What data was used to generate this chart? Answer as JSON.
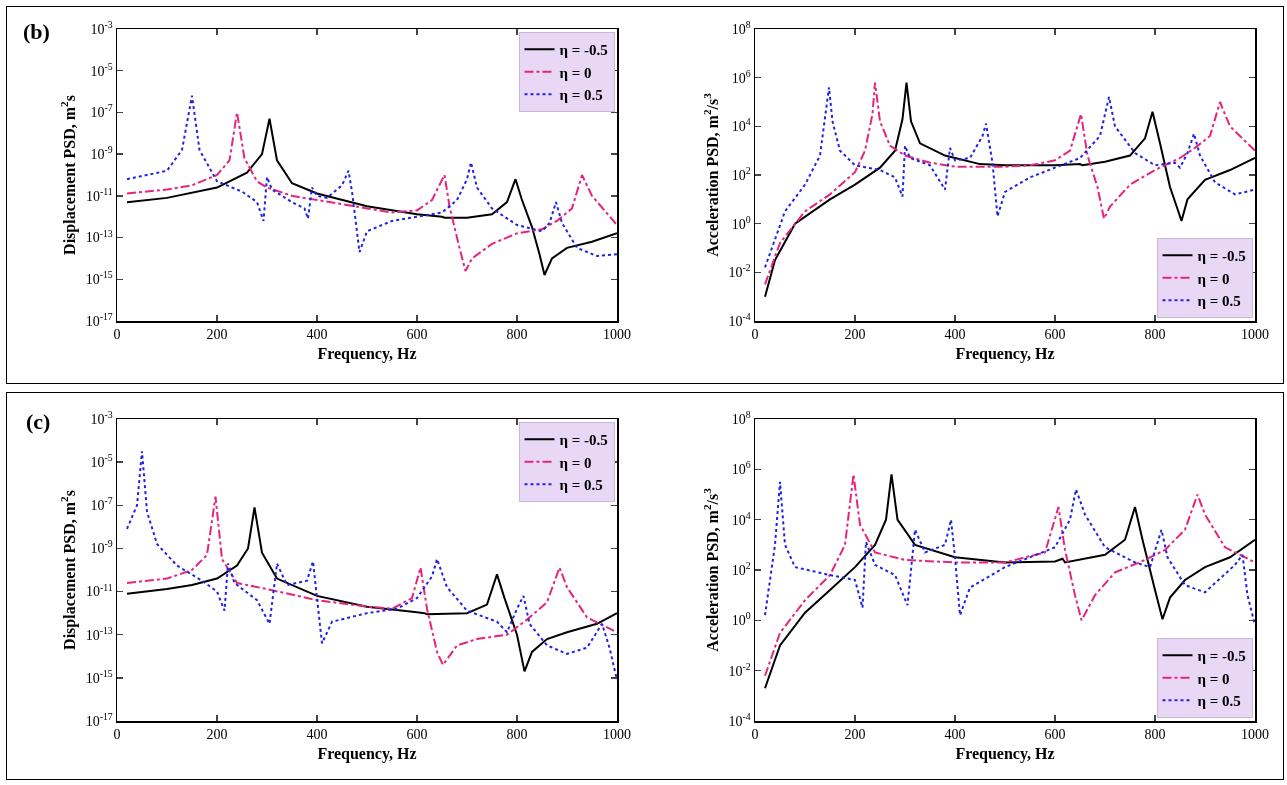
{
  "chart_data": [
    {
      "type": "line",
      "xlabel": "Frequency, Hz",
      "ylabel": "Displacement PSD, m$^{2}$s",
      "annotations": [
        "(b)"
      ],
      "log": "y",
      "legend": "top right",
      "xlim": [
        0,
        1000
      ],
      "xticks": [
        0,
        200,
        400,
        600,
        800,
        1000
      ],
      "ylim": [
        1e-17,
        0.001
      ],
      "yticks": [
        {
          "value": 1e-17,
          "label": "10$^{-17}$"
        },
        {
          "value": 1e-15,
          "label": "10$^{-15}$"
        },
        {
          "value": 1e-13,
          "label": "10$^{-13}$"
        },
        {
          "value": 1e-11,
          "label": "10$^{-11}$"
        },
        {
          "value": 1e-09,
          "label": "10$^{-9}$"
        },
        {
          "value": 1e-07,
          "label": "10$^{-7}$"
        },
        {
          "value": 1e-05,
          "label": "10$^{-5}$"
        },
        {
          "value": 0.001,
          "label": "10$^{-3}$"
        }
      ],
      "series": [
        {
          "name": "η = -0.5",
          "color": "#000000",
          "line_style": "solid",
          "x": [
            20,
            100,
            200,
            260,
            290,
            305,
            320,
            350,
            400,
            500,
            600,
            650,
            655,
            700,
            750,
            780,
            797,
            810,
            830,
            845,
            855,
            870,
            900,
            950,
            1000
          ],
          "values": [
            5e-12,
            8e-12,
            2.5e-11,
            1.3e-10,
            1e-09,
            5e-08,
            5e-10,
            4e-11,
            1.3e-11,
            3.2e-12,
            1.3e-12,
            1e-12,
            9e-13,
            9e-13,
            1.3e-12,
            5e-12,
            6.3e-11,
            6.3e-12,
            3.2e-13,
            1.6e-14,
            1.6e-15,
            1e-14,
            3.2e-14,
            6.3e-14,
            1.6e-13
          ]
        },
        {
          "name": "η = 0",
          "color": "#e6247a",
          "line_style": "dashdot",
          "x": [
            20,
            100,
            150,
            200,
            225,
            240,
            255,
            280,
            300,
            350,
            400,
            450,
            500,
            550,
            600,
            630,
            655,
            665,
            685,
            697,
            710,
            750,
            800,
            850,
            880,
            910,
            930,
            950,
            1000
          ],
          "values": [
            1.3e-11,
            2e-11,
            3.2e-11,
            1e-10,
            5e-10,
            1e-07,
            6.3e-10,
            5e-11,
            2.5e-11,
            1e-11,
            6.3e-12,
            4e-12,
            2.5e-12,
            1.6e-12,
            2e-12,
            6.3e-12,
            1e-10,
            3.2e-12,
            3.2e-14,
            2.5e-15,
            1e-14,
            5e-14,
            1.6e-13,
            2.5e-13,
            6.3e-13,
            2.5e-12,
            1e-10,
            1e-11,
            4e-13
          ]
        },
        {
          "name": "η = 0.5",
          "color": "#2222e0",
          "line_style": "dotted",
          "x": [
            20,
            100,
            130,
            150,
            165,
            200,
            250,
            280,
            293,
            300,
            310,
            350,
            375,
            382,
            390,
            400,
            420,
            450,
            463,
            470,
            485,
            500,
            550,
            600,
            650,
            680,
            700,
            708,
            720,
            750,
            800,
            850,
            865,
            878,
            890,
            920,
            960,
            1000
          ],
          "values": [
            6.3e-11,
            1.6e-10,
            1.6e-09,
            6.3e-07,
            1.6e-09,
            5e-11,
            1.6e-11,
            5e-12,
            6.3e-13,
            8e-11,
            2e-11,
            5e-12,
            2.5e-12,
            8e-13,
            2.5e-11,
            1e-11,
            8e-12,
            3.2e-11,
            1.6e-10,
            1.6e-11,
            2e-14,
            2e-13,
            6.3e-13,
            1e-12,
            1.6e-12,
            6.3e-12,
            6.3e-11,
            4e-10,
            2.5e-11,
            2.5e-12,
            4e-13,
            2e-13,
            5e-13,
            5e-12,
            5e-13,
            3.2e-14,
            1.3e-14,
            1.6e-14
          ]
        }
      ]
    },
    {
      "type": "line",
      "xlabel": "Frequency, Hz",
      "ylabel": "Acceleration PSD, m$^{2}$/s$^{3}$",
      "log": "y",
      "legend": "bottom right",
      "xlim": [
        0,
        1000
      ],
      "xticks": [
        0,
        200,
        400,
        600,
        800,
        1000
      ],
      "ylim": [
        0.0001,
        100000000.0
      ],
      "yticks": [
        {
          "value": 0.0001,
          "label": "10$^{-4}$"
        },
        {
          "value": 0.01,
          "label": "10$^{-2}$"
        },
        {
          "value": 1,
          "label": "10$^{0}$"
        },
        {
          "value": 100,
          "label": "10$^{2}$"
        },
        {
          "value": 10000.0,
          "label": "10$^{4}$"
        },
        {
          "value": 1000000.0,
          "label": "10$^{6}$"
        },
        {
          "value": 100000000.0,
          "label": "10$^{8}$"
        }
      ],
      "series": [
        {
          "name": "η = -0.5",
          "color": "#000000",
          "line_style": "solid",
          "x": [
            20,
            40,
            80,
            150,
            200,
            250,
            280,
            295,
            303,
            312,
            330,
            380,
            450,
            500,
            600,
            650,
            655,
            700,
            750,
            780,
            795,
            810,
            830,
            845,
            853,
            865,
            900,
            950,
            1000
          ],
          "values": [
            0.001,
            0.032,
            1,
            10,
            40,
            200,
            1000,
            20000,
            630000,
            16000,
            2000,
            630,
            280,
            250,
            250,
            280,
            250,
            350,
            630,
            3200,
            40000,
            2000,
            32,
            4,
            1.3,
            10,
            63,
            160,
            500
          ]
        },
        {
          "name": "η = 0",
          "color": "#e6247a",
          "line_style": "dashdot",
          "x": [
            20,
            50,
            100,
            150,
            200,
            220,
            235,
            240,
            250,
            270,
            300,
            350,
            400,
            500,
            550,
            600,
            630,
            652,
            665,
            685,
            698,
            710,
            750,
            800,
            850,
            880,
            910,
            930,
            950,
            1000
          ],
          "values": [
            0.0032,
            0.16,
            3.2,
            16,
            130,
            1000,
            32000,
            630000,
            16000,
            1600,
            630,
            320,
            220,
            220,
            250,
            400,
            1000,
            32000,
            630,
            32,
            1.6,
            5,
            40,
            160,
            500,
            1300,
            4000,
            100000,
            10000,
            1000
          ]
        },
        {
          "name": "η = 0.5",
          "color": "#2222e0",
          "line_style": "dotted",
          "x": [
            20,
            60,
            100,
            130,
            148,
            155,
            170,
            200,
            250,
            280,
            295,
            300,
            310,
            350,
            380,
            390,
            400,
            430,
            455,
            462,
            475,
            485,
            500,
            550,
            600,
            650,
            690,
            708,
            720,
            760,
            800,
            840,
            850,
            865,
            878,
            890,
            920,
            960,
            1000
          ],
          "values": [
            0.016,
            3.2,
            40,
            630,
            400000,
            16000,
            1000,
            250,
            160,
            80,
            13,
            1600,
            500,
            250,
            25,
            1300,
            400,
            500,
            4000,
            13000,
            320,
            2,
            20,
            80,
            200,
            500,
            4000,
            160000,
            10000,
            800,
            250,
            320,
            200,
            800,
            5000,
            630,
            50,
            16,
            25
          ]
        }
      ]
    },
    {
      "type": "line",
      "xlabel": "Frequency, Hz",
      "ylabel": "Displacement PSD, m$^{2}$s",
      "annotations": [
        "(c)"
      ],
      "log": "y",
      "legend": "top right",
      "xlim": [
        0,
        1000
      ],
      "xticks": [
        0,
        200,
        400,
        600,
        800,
        1000
      ],
      "ylim": [
        1e-17,
        0.001
      ],
      "yticks": [
        {
          "value": 1e-17,
          "label": "10$^{-17}$"
        },
        {
          "value": 1e-15,
          "label": "10$^{-15}$"
        },
        {
          "value": 1e-13,
          "label": "10$^{-13}$"
        },
        {
          "value": 1e-11,
          "label": "10$^{-11}$"
        },
        {
          "value": 1e-09,
          "label": "10$^{-9}$"
        },
        {
          "value": 1e-07,
          "label": "10$^{-7}$"
        },
        {
          "value": 1e-05,
          "label": "10$^{-5}$"
        },
        {
          "value": 0.001,
          "label": "10$^{-3}$"
        }
      ],
      "series": [
        {
          "name": "η = -0.5",
          "color": "#000000",
          "line_style": "solid",
          "x": [
            20,
            100,
            150,
            200,
            240,
            262,
            275,
            290,
            320,
            400,
            500,
            600,
            615,
            620,
            700,
            740,
            760,
            775,
            800,
            815,
            830,
            860,
            900,
            960,
            1000
          ],
          "values": [
            8e-12,
            1.3e-11,
            2e-11,
            4e-11,
            1.6e-10,
            1e-09,
            8e-08,
            6.3e-10,
            4e-11,
            6.3e-12,
            2e-12,
            1.1e-12,
            1e-12,
            9e-13,
            1e-12,
            2.5e-12,
            6.3e-11,
            5e-12,
            1e-13,
            2e-15,
            1.6e-14,
            6.3e-14,
            1.3e-13,
            3.2e-13,
            1e-12
          ]
        },
        {
          "name": "η = 0",
          "color": "#e6247a",
          "line_style": "dashdot",
          "x": [
            20,
            100,
            150,
            180,
            197,
            210,
            240,
            300,
            400,
            500,
            550,
            590,
            607,
            620,
            640,
            652,
            680,
            720,
            780,
            820,
            860,
            885,
            900,
            940,
            1000
          ],
          "values": [
            2.5e-11,
            4e-11,
            1e-10,
            5e-10,
            2.5e-07,
            3.2e-10,
            2.5e-11,
            1.3e-11,
            4e-12,
            2e-12,
            1.6e-12,
            5e-12,
            1.3e-10,
            1.6e-12,
            1.6e-14,
            4e-15,
            3.2e-14,
            6.3e-14,
            1e-13,
            5e-13,
            3.2e-12,
            1.3e-10,
            1.6e-11,
            6.3e-13,
            1.3e-13
          ]
        },
        {
          "name": "η = 0.5",
          "color": "#2222e0",
          "line_style": "dotted",
          "x": [
            20,
            40,
            50,
            60,
            80,
            120,
            170,
            200,
            215,
            222,
            235,
            280,
            305,
            320,
            340,
            380,
            392,
            400,
            410,
            430,
            500,
            560,
            600,
            630,
            640,
            660,
            700,
            760,
            780,
            800,
            813,
            825,
            860,
            900,
            940,
            970,
            985,
            1000
          ],
          "values": [
            8e-09,
            1e-07,
            3.2e-05,
            5e-08,
            1.6e-09,
            1.6e-10,
            3.2e-11,
            1e-11,
            1.3e-12,
            2e-10,
            2.5e-11,
            4e-12,
            3.2e-13,
            2e-10,
            2e-11,
            3.2e-11,
            2.5e-10,
            5e-12,
            4e-14,
            4e-13,
            1e-12,
            1.6e-12,
            5e-12,
            5e-11,
            3.2e-10,
            1.6e-11,
            1.3e-12,
            4e-13,
            1.3e-13,
            1.6e-12,
            6.3e-12,
            3.2e-13,
            3.2e-14,
            1.3e-14,
            2.5e-14,
            3.2e-13,
            2.5e-14,
            8e-16
          ]
        }
      ]
    },
    {
      "type": "line",
      "xlabel": "Frequency, Hz",
      "ylabel": "Acceleration PSD, m$^{2}$/s$^{3}$",
      "log": "y",
      "legend": "bottom right",
      "xlim": [
        0,
        1000
      ],
      "xticks": [
        0,
        200,
        400,
        600,
        800,
        1000
      ],
      "ylim": [
        0.0001,
        100000000.0
      ],
      "yticks": [
        {
          "value": 0.0001,
          "label": "10$^{-4}$"
        },
        {
          "value": 0.01,
          "label": "10$^{-2}$"
        },
        {
          "value": 1,
          "label": "10$^{0}$"
        },
        {
          "value": 100,
          "label": "10$^{2}$"
        },
        {
          "value": 10000.0,
          "label": "10$^{4}$"
        },
        {
          "value": 1000000.0,
          "label": "10$^{6}$"
        },
        {
          "value": 100000000.0,
          "label": "10$^{8}$"
        }
      ],
      "series": [
        {
          "name": "η = -0.5",
          "color": "#000000",
          "line_style": "solid",
          "x": [
            20,
            50,
            100,
            150,
            200,
            240,
            262,
            273,
            285,
            320,
            400,
            500,
            600,
            615,
            620,
            700,
            740,
            760,
            775,
            800,
            815,
            830,
            860,
            900,
            950,
            1000
          ],
          "values": [
            0.002,
            0.1,
            2,
            16,
            130,
            1000,
            10000,
            630000,
            10000,
            1000,
            320,
            200,
            220,
            280,
            200,
            400,
            1600,
            32000,
            1600,
            16,
            1.1,
            8,
            40,
            130,
            320,
            1600
          ]
        },
        {
          "name": "η = 0",
          "color": "#e6247a",
          "line_style": "dashdot",
          "x": [
            20,
            50,
            100,
            150,
            180,
            197,
            210,
            240,
            300,
            400,
            500,
            580,
            607,
            620,
            640,
            653,
            680,
            720,
            780,
            820,
            860,
            885,
            900,
            940,
            1000
          ],
          "values": [
            0.0063,
            0.32,
            6.3,
            63,
            1000,
            630000,
            6300,
            500,
            250,
            200,
            200,
            500,
            32000,
            630,
            10,
            1,
            10,
            80,
            250,
            630,
            4000,
            100000,
            16000,
            800,
            200
          ]
        },
        {
          "name": "η = 0.5",
          "color": "#2222e0",
          "line_style": "dotted",
          "x": [
            20,
            40,
            50,
            60,
            80,
            150,
            200,
            215,
            222,
            240,
            280,
            305,
            320,
            340,
            380,
            392,
            400,
            410,
            430,
            500,
            600,
            630,
            642,
            660,
            700,
            760,
            790,
            813,
            825,
            860,
            900,
            960,
            975,
            985,
            1000
          ],
          "values": [
            1.6,
            1000,
            320000,
            1000,
            130,
            63,
            40,
            3.2,
            1300,
            160,
            63,
            4,
            4000,
            500,
            1000,
            10000,
            320,
            1.6,
            20,
            130,
            800,
            10000,
            160000,
            16000,
            800,
            200,
            130,
            4000,
            320,
            25,
            13,
            160,
            400,
            10,
            0.63
          ]
        }
      ]
    }
  ]
}
